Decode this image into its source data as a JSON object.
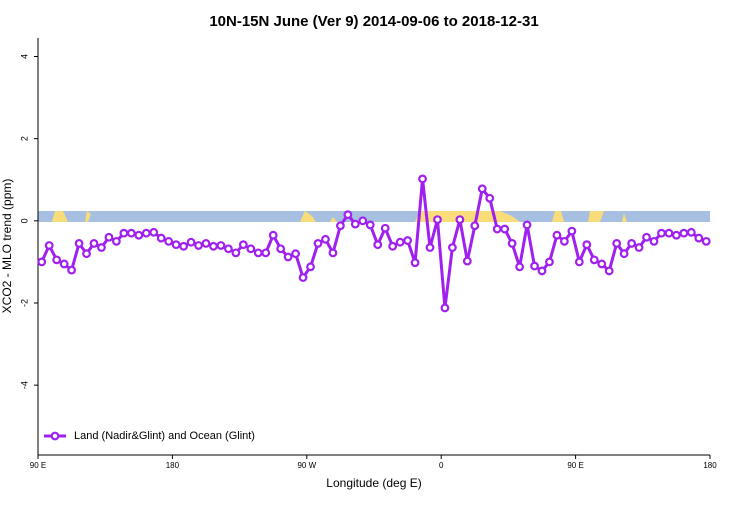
{
  "chart_data": {
    "type": "line",
    "title": "10N-15N June (Ver 9)   2014-09-06 to 2018-12-31",
    "x_label": "Longitude (deg E)",
    "y_label": "XCO2 - MLO trend (ppm)",
    "x": [
      92.5,
      97.5,
      102.5,
      107.5,
      112.5,
      117.5,
      122.5,
      127.5,
      132.5,
      137.5,
      142.5,
      147.5,
      152.5,
      157.5,
      162.5,
      167.5,
      172.5,
      177.5,
      182.5,
      187.5,
      192.5,
      197.5,
      202.5,
      207.5,
      212.5,
      217.5,
      222.5,
      227.5,
      232.5,
      237.5,
      242.5,
      247.5,
      252.5,
      257.5,
      262.5,
      267.5,
      272.5,
      277.5,
      282.5,
      287.5,
      292.5,
      297.5,
      302.5,
      307.5,
      312.5,
      317.5,
      322.5,
      327.5,
      332.5,
      337.5,
      342.5,
      347.5,
      352.5,
      357.5,
      362.5,
      367.5,
      372.5,
      377.5,
      382.5,
      387.5,
      392.5,
      397.5,
      402.5,
      407.5,
      412.5,
      417.5,
      422.5,
      427.5,
      432.5,
      437.5,
      442.5,
      447.5,
      452.5,
      457.5,
      462.5,
      467.5,
      472.5,
      477.5,
      482.5,
      487.5,
      492.5,
      497.5,
      502.5,
      507.5,
      512.5,
      517.5,
      522.5,
      527.5,
      532.5,
      537.5
    ],
    "series": [
      {
        "name": "Land (Nadir&Glint) and Ocean (Glint)",
        "color": "#a020f0",
        "values": [
          -1.0,
          -0.6,
          -0.95,
          -1.05,
          -1.2,
          -0.55,
          -0.8,
          -0.55,
          -0.65,
          -0.4,
          -0.5,
          -0.3,
          -0.3,
          -0.35,
          -0.3,
          -0.28,
          -0.42,
          -0.5,
          -0.58,
          -0.62,
          -0.52,
          -0.6,
          -0.55,
          -0.62,
          -0.6,
          -0.68,
          -0.78,
          -0.58,
          -0.68,
          -0.78,
          -0.78,
          -0.35,
          -0.68,
          -0.88,
          -0.8,
          -1.38,
          -1.12,
          -0.55,
          -0.45,
          -0.78,
          -0.12,
          0.15,
          -0.08,
          0.0,
          -0.1,
          -0.58,
          -0.18,
          -0.62,
          -0.52,
          -0.48,
          -1.02,
          1.02,
          -0.65,
          0.03,
          -2.12,
          -0.65,
          0.03,
          -0.98,
          -0.12,
          0.78,
          0.55,
          -0.2,
          -0.2,
          -0.55,
          -1.12,
          -0.1,
          -1.1,
          -1.22,
          -1.0,
          -0.35,
          -0.5,
          -0.25,
          -1.0,
          -0.58,
          -0.95,
          -1.05,
          -1.22,
          -0.55,
          -0.8,
          -0.55,
          -0.65,
          -0.4,
          -0.5,
          -0.3,
          -0.3,
          -0.35,
          -0.3,
          -0.28,
          -0.42,
          -0.5
        ]
      }
    ],
    "xlim": [
      90,
      540
    ],
    "ylim": [
      -5.7,
      4.45
    ],
    "xticks": [
      {
        "value": 90,
        "label": "90 E"
      },
      180,
      {
        "value": 270,
        "label": "90 W"
      },
      {
        "value": 360,
        "label": "0"
      },
      {
        "value": 450,
        "label": "90 E"
      },
      180
    ],
    "yticks": [
      -4,
      -2,
      0,
      2,
      4
    ],
    "legend": "bottom-left"
  }
}
